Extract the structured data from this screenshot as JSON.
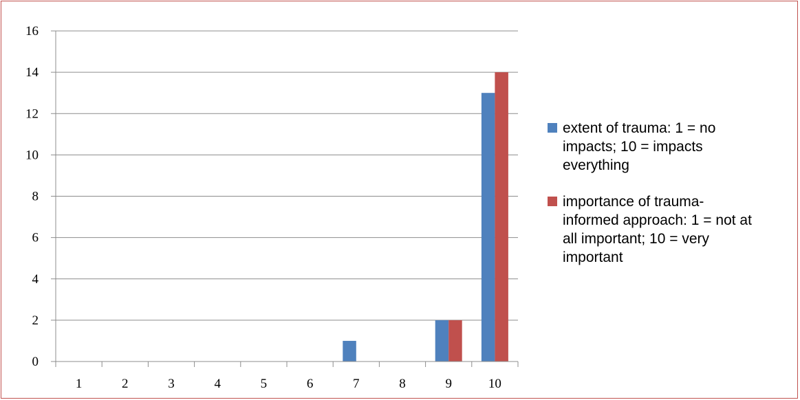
{
  "chart_data": {
    "type": "bar",
    "categories": [
      "1",
      "2",
      "3",
      "4",
      "5",
      "6",
      "7",
      "8",
      "9",
      "10"
    ],
    "series": [
      {
        "name": "extent of trauma: 1 = no impacts; 10 = impacts everything",
        "color": "#4f81bd",
        "values": [
          0,
          0,
          0,
          0,
          0,
          0,
          1,
          0,
          2,
          13
        ]
      },
      {
        "name": "importance of trauma-informed approach: 1 = not at all important; 10 = very important",
        "color": "#c0504d",
        "values": [
          0,
          0,
          0,
          0,
          0,
          0,
          0,
          0,
          2,
          14
        ]
      }
    ],
    "yticks": [
      "0",
      "2",
      "4",
      "6",
      "8",
      "10",
      "12",
      "14",
      "16"
    ],
    "ylim": [
      0,
      16
    ],
    "grid": true,
    "legend_position": "right",
    "title": "",
    "xlabel": "",
    "ylabel": ""
  },
  "legend": {
    "items": [
      {
        "lines": [
          "extent of trauma: 1 = no",
          "impacts; 10 = impacts",
          "everything"
        ]
      },
      {
        "lines": [
          "importance of trauma-",
          "informed approach: 1 = not at",
          "all important; 10 = very",
          "important"
        ]
      }
    ]
  },
  "frame_color": "#c0504d"
}
